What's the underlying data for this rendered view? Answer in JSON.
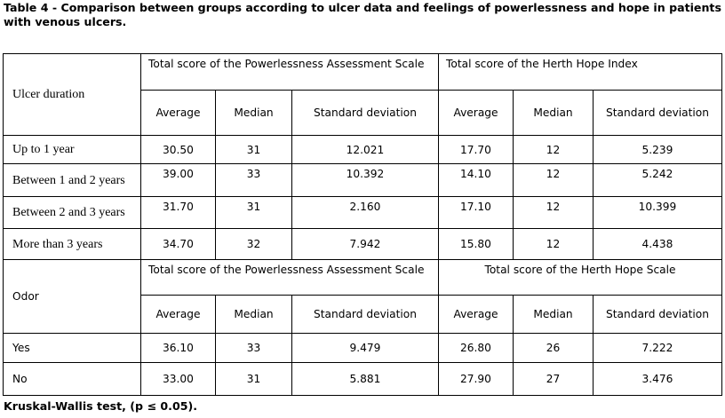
{
  "caption": "Table 4 - Comparison between groups according to ulcer data and feelings of powerlessness and hope in patients with venous ulcers.",
  "footnote": "Kruskal-Wallis test, (p ≤ 0.05).",
  "section1": {
    "label": "Ulcer duration",
    "group_a": "Total score of the Powerlessness Assessment Scale",
    "group_b": "Total score of the Herth Hope Index",
    "cols": [
      "Average",
      "Median",
      "Standard deviation",
      "Average",
      "Median",
      "Standard deviation"
    ],
    "rows": [
      {
        "label": "Up to 1 year",
        "values": [
          "30.50",
          "31",
          "12.021",
          "17.70",
          "12",
          "5.239"
        ]
      },
      {
        "label": "Between 1 and 2 years",
        "values": [
          "39.00",
          "33",
          "10.392",
          "14.10",
          "12",
          "5.242"
        ]
      },
      {
        "label": "Between 2 and 3 years",
        "values": [
          "31.70",
          "31",
          "2.160",
          "17.10",
          "12",
          "10.399"
        ]
      },
      {
        "label": "More than 3 years",
        "values": [
          "34.70",
          "32",
          "7.942",
          "15.80",
          "12",
          "4.438"
        ]
      }
    ]
  },
  "section2": {
    "label": "Odor",
    "group_a": "Total score of the Powerlessness Assessment Scale",
    "group_b": "Total score of the Herth Hope Scale",
    "cols": [
      "Average",
      "Median",
      "Standard deviation",
      "Average",
      "Median",
      "Standard deviation"
    ],
    "rows": [
      {
        "label": "Yes",
        "values": [
          "36.10",
          "33",
          "9.479",
          "26.80",
          "26",
          "7.222"
        ]
      },
      {
        "label": "No",
        "values": [
          "33.00",
          "31",
          "5.881",
          "27.90",
          "27",
          "3.476"
        ]
      }
    ]
  }
}
